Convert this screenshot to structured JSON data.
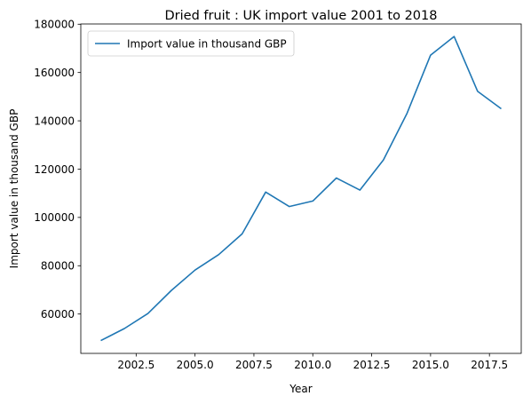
{
  "chart_data": {
    "type": "line",
    "title": "Dried fruit : UK import value 2001 to 2018",
    "xlabel": "Year",
    "ylabel": "Import value in thousand GBP",
    "xlim": [
      2000.15,
      2018.85
    ],
    "ylim": [
      43700,
      180100
    ],
    "xticks": [
      2002.5,
      2005.0,
      2007.5,
      2010.0,
      2012.5,
      2015.0,
      2017.5
    ],
    "xtick_labels": [
      "2002.5",
      "2005.0",
      "2007.5",
      "2010.0",
      "2012.5",
      "2015.0",
      "2017.5"
    ],
    "yticks": [
      60000,
      80000,
      100000,
      120000,
      140000,
      160000,
      180000
    ],
    "ytick_labels": [
      "60000",
      "80000",
      "100000",
      "120000",
      "140000",
      "160000",
      "180000"
    ],
    "grid": false,
    "legend_position": "top-left",
    "series": [
      {
        "name": "Import value in thousand GBP",
        "color": "#1f77b4",
        "x": [
          2001,
          2002,
          2003,
          2004,
          2005,
          2006,
          2007,
          2008,
          2009,
          2010,
          2011,
          2012,
          2013,
          2014,
          2015,
          2016,
          2017,
          2018
        ],
        "y": [
          49000,
          54000,
          60200,
          69800,
          78200,
          84600,
          93200,
          110500,
          104500,
          106800,
          116300,
          111300,
          123800,
          143100,
          167200,
          174900,
          152200,
          145000
        ]
      }
    ]
  }
}
